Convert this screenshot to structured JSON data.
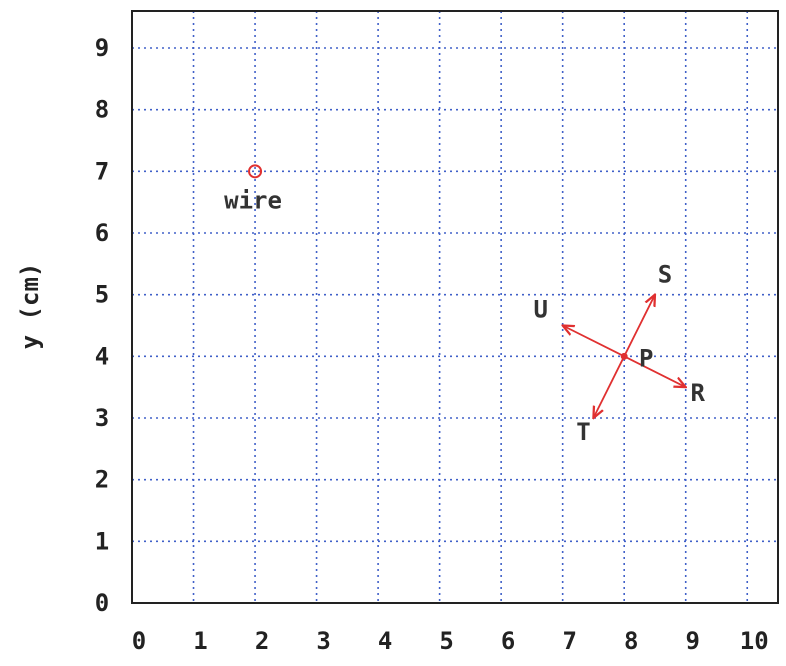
{
  "chart_data": {
    "type": "scatter",
    "xlim": [
      0,
      10.5
    ],
    "ylim": [
      0,
      9.6
    ],
    "x_ticks": [
      "0",
      "1",
      "2",
      "3",
      "4",
      "5",
      "6",
      "7",
      "8",
      "9",
      "10"
    ],
    "y_ticks": [
      "0",
      "1",
      "2",
      "3",
      "4",
      "5",
      "6",
      "7",
      "8",
      "9"
    ],
    "xlabel": "",
    "ylabel": "y (cm)",
    "grid": true,
    "wire": {
      "x": 2,
      "y": 7,
      "label": "wire"
    },
    "point": {
      "x": 8,
      "y": 4,
      "label": "P"
    },
    "vectors": [
      {
        "label": "S",
        "to": [
          8.5,
          5.0
        ]
      },
      {
        "label": "R",
        "to": [
          9.0,
          3.5
        ]
      },
      {
        "label": "T",
        "to": [
          7.5,
          3.0
        ]
      },
      {
        "label": "U",
        "to": [
          7.0,
          4.5
        ]
      }
    ],
    "colors": {
      "grid": "#4060c8",
      "marks": "#e03030",
      "axes": "#222222"
    }
  }
}
